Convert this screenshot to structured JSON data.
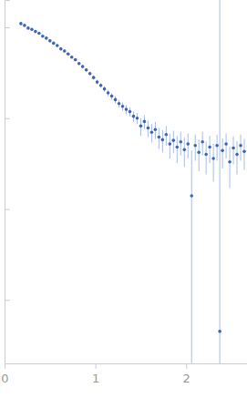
{
  "chart_data": {
    "type": "scatter",
    "log": "y",
    "color": "#3a66b5",
    "marker": "circle",
    "tick_labels": "x",
    "xlim": [
      0,
      2.67
    ],
    "xticks": [
      0,
      1,
      2
    ],
    "ylim": [
      0.0002,
      2
    ],
    "yticks": [
      0.001,
      0.01,
      0.1,
      1
    ],
    "x": [
      0.18,
      0.22,
      0.26,
      0.3,
      0.34,
      0.38,
      0.42,
      0.46,
      0.5,
      0.54,
      0.58,
      0.62,
      0.66,
      0.7,
      0.74,
      0.78,
      0.82,
      0.86,
      0.9,
      0.94,
      0.98,
      1.02,
      1.06,
      1.1,
      1.14,
      1.18,
      1.22,
      1.26,
      1.3,
      1.34,
      1.38,
      1.42,
      1.46,
      1.5,
      1.54,
      1.58,
      1.62,
      1.66,
      1.7,
      1.74,
      1.78,
      1.82,
      1.86,
      1.9,
      1.94,
      1.98,
      2.02,
      2.06,
      2.1,
      2.14,
      2.18,
      2.22,
      2.26,
      2.3,
      2.34,
      2.37,
      2.4,
      2.44,
      2.48,
      2.52,
      2.56,
      2.6,
      2.64
    ],
    "values": [
      1.1,
      1.05,
      0.98,
      0.95,
      0.9,
      0.86,
      0.8,
      0.76,
      0.71,
      0.67,
      0.63,
      0.58,
      0.55,
      0.51,
      0.47,
      0.44,
      0.4,
      0.37,
      0.34,
      0.31,
      0.28,
      0.25,
      0.23,
      0.21,
      0.19,
      0.175,
      0.16,
      0.145,
      0.135,
      0.125,
      0.118,
      0.105,
      0.1,
      0.082,
      0.092,
      0.078,
      0.07,
      0.075,
      0.062,
      0.058,
      0.066,
      0.052,
      0.057,
      0.048,
      0.055,
      0.045,
      0.052,
      0.014,
      0.05,
      0.042,
      0.055,
      0.04,
      0.048,
      0.036,
      0.05,
      0.00045,
      0.044,
      0.052,
      0.033,
      0.047,
      0.04,
      0.05,
      0.043
    ],
    "errors": [
      0.04,
      0.03,
      0.03,
      0.025,
      0.025,
      0.02,
      0.02,
      0.02,
      0.02,
      0.02,
      0.02,
      0.02,
      0.02,
      0.02,
      0.015,
      0.015,
      0.015,
      0.015,
      0.015,
      0.015,
      0.015,
      0.015,
      0.015,
      0.015,
      0.015,
      0.014,
      0.014,
      0.014,
      0.014,
      0.014,
      0.014,
      0.014,
      0.014,
      0.018,
      0.016,
      0.016,
      0.016,
      0.016,
      0.016,
      0.016,
      0.016,
      0.016,
      0.016,
      0.016,
      0.016,
      0.016,
      0.016,
      0.03,
      0.016,
      0.016,
      0.016,
      0.016,
      0.016,
      0.016,
      0.016,
      2,
      0.016,
      0.016,
      0.016,
      0.016,
      0.016,
      0.016,
      0.016
    ]
  }
}
